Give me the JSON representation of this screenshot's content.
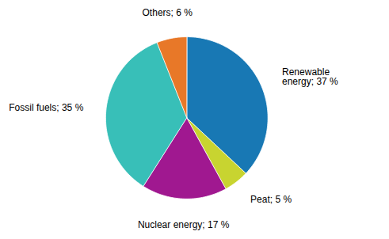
{
  "chart_data": {
    "type": "pie",
    "categories": [
      "Renewable\nenergy; 37 %",
      "Peat; 5 %",
      "Nuclear energy; 17 %",
      "Fossil fuels; 35 %",
      "Others; 6 %"
    ],
    "values": [
      37,
      5,
      17,
      35,
      6
    ],
    "colors": [
      "#1878b4",
      "#c8d430",
      "#a01890",
      "#38bfb8",
      "#e87828"
    ]
  }
}
